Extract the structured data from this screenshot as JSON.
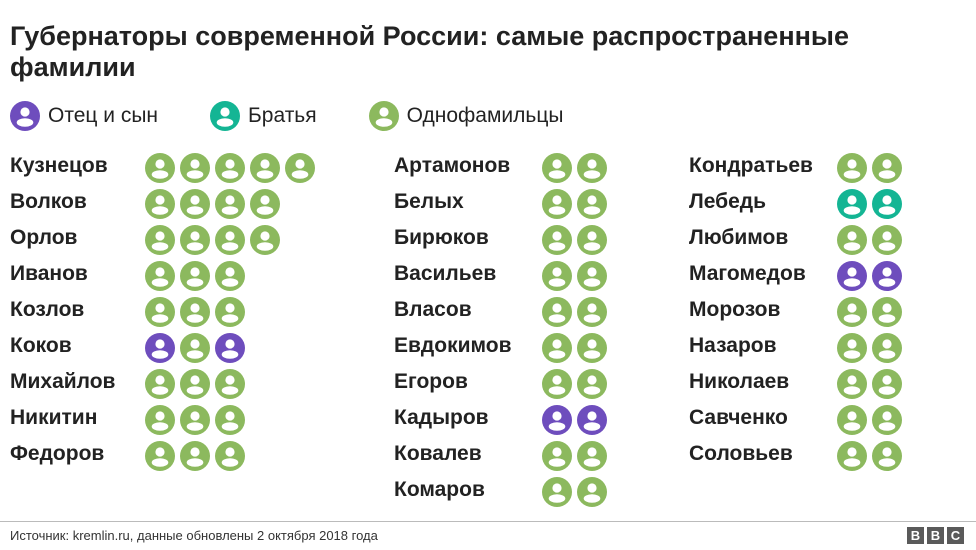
{
  "title": "Губернаторы современной России: самые распространенные фамилии",
  "colors": {
    "father_son": "#6e4dbd",
    "brothers": "#14b594",
    "namesakes": "#8cb95e",
    "text": "#222222"
  },
  "legend": [
    {
      "key": "father_son",
      "label": "Отец и сын",
      "icon": "person-icon"
    },
    {
      "key": "brothers",
      "label": "Братья",
      "icon": "person-icon"
    },
    {
      "key": "namesakes",
      "label": "Однофамильцы",
      "icon": "person-icon"
    }
  ],
  "chart_data": {
    "type": "pictogram",
    "title": "Губернаторы современной России: самые распространенные фамилии",
    "unit": "one icon = one governor",
    "columns": [
      [
        {
          "name": "Кузнецов",
          "count": 5,
          "relation": "namesakes"
        },
        {
          "name": "Волков",
          "count": 4,
          "relation": "namesakes"
        },
        {
          "name": "Орлов",
          "count": 4,
          "relation": "namesakes"
        },
        {
          "name": "Иванов",
          "count": 3,
          "relation": "namesakes"
        },
        {
          "name": "Козлов",
          "count": 3,
          "relation": "namesakes"
        },
        {
          "name": "Коков",
          "count": 3,
          "types": [
            "father_son",
            "namesakes",
            "father_son"
          ]
        },
        {
          "name": "Михайлов",
          "count": 3,
          "relation": "namesakes"
        },
        {
          "name": "Никитин",
          "count": 3,
          "relation": "namesakes"
        },
        {
          "name": "Федоров",
          "count": 3,
          "relation": "namesakes"
        }
      ],
      [
        {
          "name": "Артамонов",
          "count": 2,
          "relation": "namesakes"
        },
        {
          "name": "Белых",
          "count": 2,
          "relation": "namesakes"
        },
        {
          "name": "Бирюков",
          "count": 2,
          "relation": "namesakes"
        },
        {
          "name": "Васильев",
          "count": 2,
          "relation": "namesakes"
        },
        {
          "name": "Власов",
          "count": 2,
          "relation": "namesakes"
        },
        {
          "name": "Евдокимов",
          "count": 2,
          "relation": "namesakes"
        },
        {
          "name": "Егоров",
          "count": 2,
          "relation": "namesakes"
        },
        {
          "name": "Кадыров",
          "count": 2,
          "relation": "father_son"
        },
        {
          "name": "Ковалев",
          "count": 2,
          "relation": "namesakes"
        },
        {
          "name": "Комаров",
          "count": 2,
          "relation": "namesakes"
        }
      ],
      [
        {
          "name": "Кондратьев",
          "count": 2,
          "relation": "namesakes"
        },
        {
          "name": "Лебедь",
          "count": 2,
          "relation": "brothers"
        },
        {
          "name": "Любимов",
          "count": 2,
          "relation": "namesakes"
        },
        {
          "name": "Магомедов",
          "count": 2,
          "relation": "father_son"
        },
        {
          "name": "Морозов",
          "count": 2,
          "relation": "namesakes"
        },
        {
          "name": "Назаров",
          "count": 2,
          "relation": "namesakes"
        },
        {
          "name": "Николаев",
          "count": 2,
          "relation": "namesakes"
        },
        {
          "name": "Савченко",
          "count": 2,
          "relation": "namesakes"
        },
        {
          "name": "Соловьев",
          "count": 2,
          "relation": "namesakes"
        }
      ]
    ]
  },
  "footer": {
    "source": "Источник: kremlin.ru, данные обновлены 2 октября 2018 года",
    "logo_letters": [
      "B",
      "B",
      "C"
    ]
  }
}
